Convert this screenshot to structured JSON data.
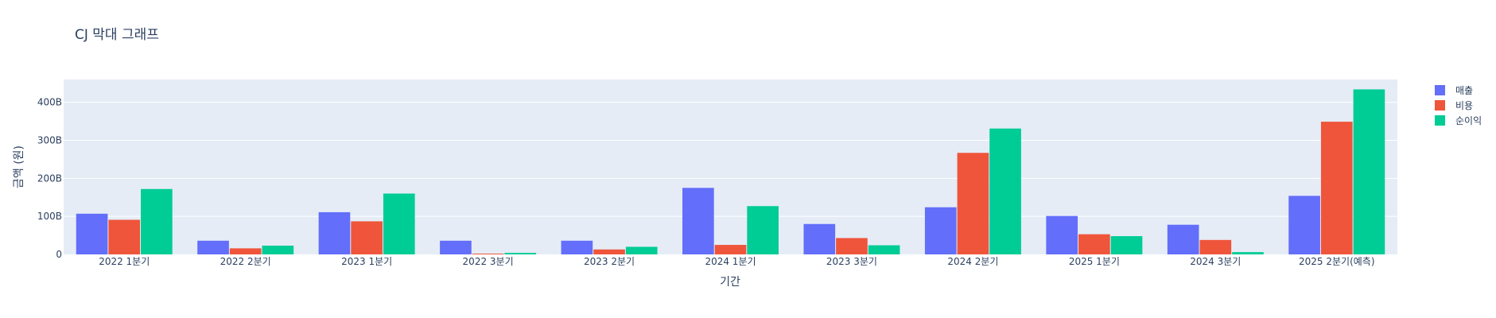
{
  "chart_data": {
    "type": "bar",
    "title": "CJ 막대 그래프",
    "xlabel": "기간",
    "ylabel": "금액 (원)",
    "ylim": [
      0,
      460
    ],
    "y_ticks": [
      0,
      100,
      200,
      300,
      400
    ],
    "y_tick_labels": [
      "0",
      "100B",
      "200B",
      "300B",
      "400B"
    ],
    "grid": true,
    "legend_position": "top-right",
    "categories": [
      "2022 1분기",
      "2022 2분기",
      "2023 1분기",
      "2022 3분기",
      "2023 2분기",
      "2024 1분기",
      "2023 3분기",
      "2024 2분기",
      "2025 1분기",
      "2024 3분기",
      "2025 2분기(예측)"
    ],
    "series": [
      {
        "name": "매출",
        "color": "#636efa",
        "values": [
          107,
          36,
          111,
          36,
          36,
          175,
          80,
          124,
          101,
          78,
          154
        ]
      },
      {
        "name": "비용",
        "color": "#ef553b",
        "values": [
          91,
          16,
          87,
          2,
          13,
          25,
          43,
          267,
          53,
          38,
          349
        ]
      },
      {
        "name": "순이익",
        "color": "#00cc96",
        "values": [
          172,
          23,
          160,
          4,
          20,
          127,
          24,
          331,
          48,
          6,
          434
        ]
      }
    ]
  }
}
